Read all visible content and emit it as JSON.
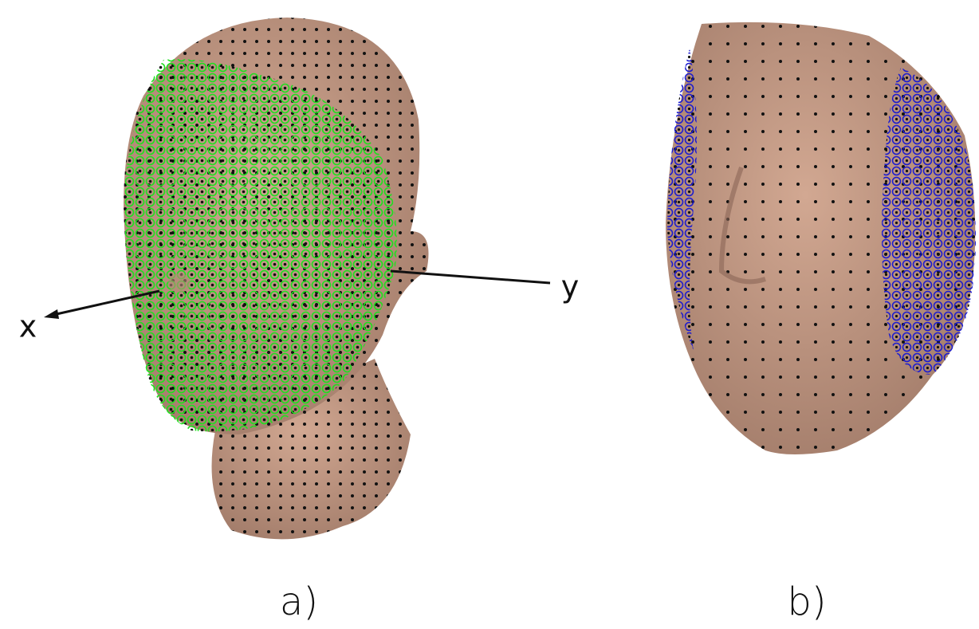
{
  "panels": [
    {
      "label": "a)",
      "axes": {
        "x": "x",
        "y": "y"
      }
    },
    {
      "label": "b)"
    }
  ]
}
